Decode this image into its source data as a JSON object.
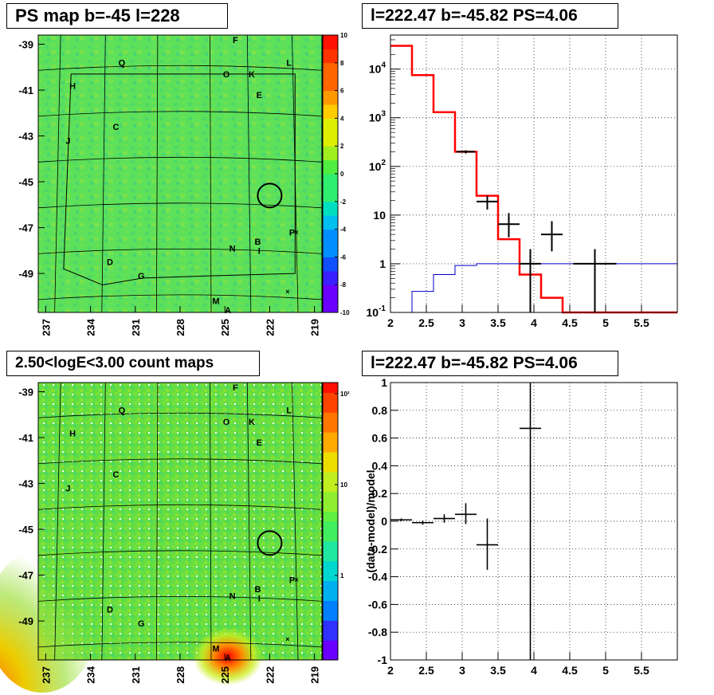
{
  "panels": {
    "ps_map": {
      "title": "PS map b=-45 l=228",
      "y_ticks": [
        "-39",
        "-41",
        "-43",
        "-45",
        "-47",
        "-49"
      ],
      "x_ticks": [
        "237",
        "234",
        "231",
        "228",
        "225",
        "222",
        "219"
      ],
      "colorbar_ticks": [
        "10",
        "8",
        "6",
        "4",
        "2",
        "0",
        "-2",
        "-4",
        "-6",
        "-8",
        "-10"
      ],
      "source_labels": [
        "F",
        "Q",
        "O",
        "K",
        "L",
        "H",
        "E",
        "C",
        "J",
        "P",
        "N",
        "B",
        "I",
        "D",
        "G",
        "M",
        "A"
      ]
    },
    "spectrum": {
      "title": "l=222.47 b=-45.82 PS=4.06"
    },
    "count_map": {
      "title": "2.50<logE<3.00 count maps",
      "y_ticks": [
        "-39",
        "-41",
        "-43",
        "-45",
        "-47",
        "-49"
      ],
      "x_ticks": [
        "237",
        "234",
        "231",
        "228",
        "225",
        "222",
        "219"
      ],
      "colorbar_ticks": [
        "10²",
        "10",
        "1"
      ],
      "source_labels": [
        "F",
        "Q",
        "O",
        "K",
        "L",
        "H",
        "E",
        "C",
        "J",
        "P",
        "N",
        "B",
        "I",
        "D",
        "G",
        "M",
        "A"
      ]
    },
    "residuals": {
      "title": "l=222.47 b=-45.82 PS=4.06"
    }
  },
  "chart_data": [
    {
      "type": "heatmap",
      "title": "PS map b=-45 l=228",
      "x_ticks": [
        237,
        234,
        231,
        228,
        225,
        222,
        219
      ],
      "y_ticks": [
        -39,
        -41,
        -43,
        -45,
        -47,
        -49
      ],
      "xlim": [
        237.5,
        218.5
      ],
      "ylim": [
        -50.7,
        -38.6
      ],
      "zlim": [
        -10,
        10
      ],
      "colorbar_ticks": [
        10,
        8,
        6,
        4,
        2,
        0,
        -2,
        -4,
        -6,
        -8,
        -10
      ],
      "sources": [
        {
          "label": "F",
          "l": 224.3,
          "b": -38.8
        },
        {
          "label": "Q",
          "l": 231.9,
          "b": -39.8
        },
        {
          "label": "O",
          "l": 224.9,
          "b": -40.3
        },
        {
          "label": "K",
          "l": 223.2,
          "b": -40.3
        },
        {
          "label": "L",
          "l": 220.7,
          "b": -39.8
        },
        {
          "label": "H",
          "l": 235.2,
          "b": -40.8
        },
        {
          "label": "E",
          "l": 222.7,
          "b": -41.2
        },
        {
          "label": "C",
          "l": 232.3,
          "b": -42.6
        },
        {
          "label": "J",
          "l": 235.5,
          "b": -43.2
        },
        {
          "label": "P",
          "l": 220.5,
          "b": -47.2
        },
        {
          "label": "N",
          "l": 224.5,
          "b": -47.9
        },
        {
          "label": "B",
          "l": 222.8,
          "b": -47.6
        },
        {
          "label": "I",
          "l": 222.7,
          "b": -48.0
        },
        {
          "label": "D",
          "l": 232.7,
          "b": -48.5
        },
        {
          "label": "G",
          "l": 230.6,
          "b": -49.1
        },
        {
          "label": "M",
          "l": 225.6,
          "b": -50.2
        },
        {
          "label": "A",
          "l": 224.8,
          "b": -50.6
        }
      ],
      "circle": {
        "l": 222.0,
        "b": -45.6
      }
    },
    {
      "type": "line",
      "title": "l=222.47 b=-45.82 PS=4.06",
      "xlim": [
        2,
        6
      ],
      "ylim": [
        0.1,
        50000
      ],
      "y_scale": "log",
      "x_ticks": [
        2,
        2.5,
        3,
        3.5,
        4,
        4.5,
        5,
        5.5
      ],
      "y_ticks": [
        0.1,
        1,
        10,
        100,
        1000,
        10000
      ],
      "series": [
        {
          "name": "",
          "color": "#ff0000",
          "steps": [
            [
              2.0,
              30000
            ],
            [
              2.3,
              7500
            ],
            [
              2.6,
              1300
            ],
            [
              2.9,
              200
            ],
            [
              3.2,
              25
            ],
            [
              3.5,
              3.2
            ],
            [
              3.8,
              0.6
            ],
            [
              4.1,
              0.2
            ],
            [
              4.4,
              0.1
            ]
          ]
        },
        {
          "name": "",
          "color": "#0000cc",
          "steps": [
            [
              2.0,
              0.05
            ],
            [
              2.3,
              0.27
            ],
            [
              2.6,
              0.6
            ],
            [
              2.9,
              0.92
            ],
            [
              3.2,
              1
            ],
            [
              3.5,
              1
            ],
            [
              3.8,
              1
            ],
            [
              4.1,
              1
            ],
            [
              4.4,
              1
            ]
          ]
        }
      ],
      "points": [
        {
          "x": 3.05,
          "y": 200,
          "xerr": 0.13,
          "ylo": 185,
          "yhi": 215
        },
        {
          "x": 3.35,
          "y": 19,
          "xerr": 0.15,
          "ylo": 13,
          "yhi": 25
        },
        {
          "x": 3.65,
          "y": 6.5,
          "xerr": 0.15,
          "ylo": 3.5,
          "yhi": 11
        },
        {
          "x": 4.25,
          "y": 4,
          "xerr": 0.15,
          "ylo": 1.8,
          "yhi": 7.5
        },
        {
          "x": 3.95,
          "y": 1,
          "xerr": 0.15,
          "ylo": 0.1,
          "yhi": 2
        },
        {
          "x": 4.85,
          "y": 1,
          "xerr": 0.3,
          "ylo": 0.1,
          "yhi": 2
        }
      ]
    },
    {
      "type": "heatmap",
      "title": "2.50<logE<3.00 count maps",
      "x_ticks": [
        237,
        234,
        231,
        228,
        225,
        222,
        219
      ],
      "y_ticks": [
        -39,
        -41,
        -43,
        -45,
        -47,
        -49
      ],
      "xlim": [
        237.5,
        218.5
      ],
      "ylim": [
        -50.7,
        -38.6
      ],
      "z_scale": "log",
      "colorbar_ticks": [
        100,
        10,
        1
      ],
      "sources": "same as PS map",
      "circle": {
        "l": 222.0,
        "b": -45.6
      }
    },
    {
      "type": "scatter",
      "title": "l=222.47 b=-45.82 PS=4.06",
      "ylabel": "(data-model)/model",
      "xlim": [
        2,
        6
      ],
      "ylim": [
        -1,
        1
      ],
      "x_ticks": [
        2,
        2.5,
        3,
        3.5,
        4,
        4.5,
        5,
        5.5
      ],
      "y_ticks": [
        -1,
        -0.8,
        -0.6,
        -0.4,
        -0.2,
        0,
        0.2,
        0.4,
        0.6,
        0.8,
        1
      ],
      "points": [
        {
          "x": 2.15,
          "y": 0.01,
          "xerr": 0.15,
          "ylo": 0.0,
          "yhi": 0.02
        },
        {
          "x": 2.45,
          "y": -0.01,
          "xerr": 0.15,
          "ylo": -0.025,
          "yhi": 0.005
        },
        {
          "x": 2.75,
          "y": 0.02,
          "xerr": 0.15,
          "ylo": -0.01,
          "yhi": 0.05
        },
        {
          "x": 3.05,
          "y": 0.05,
          "xerr": 0.15,
          "ylo": -0.02,
          "yhi": 0.13
        },
        {
          "x": 3.35,
          "y": -0.17,
          "xerr": 0.15,
          "ylo": -0.35,
          "yhi": 0.02
        },
        {
          "x": 3.95,
          "y": 0.67,
          "xerr": 0.15,
          "ylo": -1,
          "yhi": 1
        }
      ]
    }
  ]
}
